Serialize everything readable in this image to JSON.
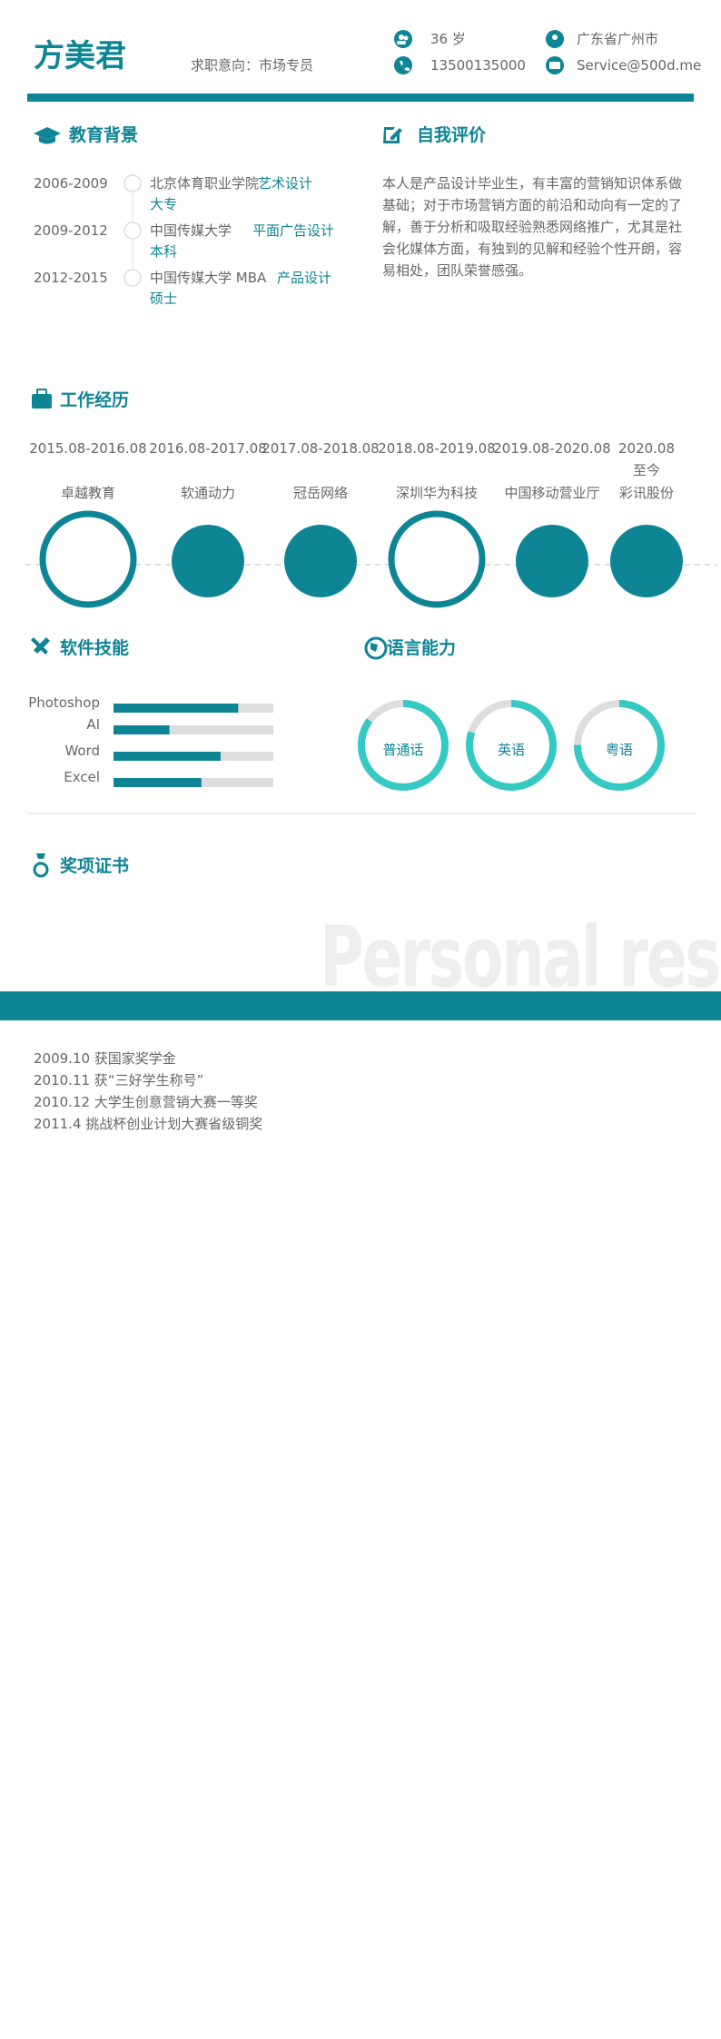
{
  "header": {
    "name": "方美君",
    "objective": "求职意向：市场专员",
    "age": "36 岁",
    "phone": "13500135000",
    "location": "广东省广州市",
    "email": "Service@500d.me"
  },
  "education": {
    "title": "教育背景",
    "items": [
      {
        "years": "2006-2009",
        "school": "北京体育职业学院",
        "major": "艺术设计",
        "degree": "大专"
      },
      {
        "years": "2009-2012",
        "school": "中国传媒大学",
        "major": "平面广告设计",
        "degree": "本科"
      },
      {
        "years": "2012-2015",
        "school": "中国传媒大学 MBA",
        "major": "产品设计",
        "degree": "硕士"
      }
    ]
  },
  "self_evaluation": {
    "title": "自我评价",
    "text": "本人是产品设计毕业生，有丰富的营销知识体系做基础；对于市场营销方面的前沿和动向有一定的了解，善于分析和吸取经验熟悉网络推广，尤其是社会化媒体方面，有独到的见解和经验个性开朗，容易相处，团队荣誉感强。"
  },
  "work": {
    "title": "工作经历",
    "items": [
      {
        "period": [
          "2015.08-2016.08"
        ],
        "company": "卓越教育",
        "ring": true
      },
      {
        "period": [
          "2016.08-2017.08"
        ],
        "company": "软通动力",
        "ring": false
      },
      {
        "period": [
          "2017.08-2018.08"
        ],
        "company": "冠岳网络",
        "ring": false
      },
      {
        "period": [
          "2018.08-2019.08"
        ],
        "company": "深圳华为科技",
        "ring": true
      },
      {
        "period": [
          "2019.08-2020.08"
        ],
        "company": "中国移动营业厅",
        "ring": false
      },
      {
        "period": [
          "2020.08",
          "至今"
        ],
        "company": "彩讯股份",
        "ring": false
      }
    ]
  },
  "skills": {
    "title": "软件技能",
    "items": [
      {
        "name": "Photoshop",
        "value": 78
      },
      {
        "name": "AI",
        "value": 35
      },
      {
        "name": "Word",
        "value": 67
      },
      {
        "name": "Excel",
        "value": 55
      }
    ]
  },
  "languages": {
    "title": "语言能力",
    "items": [
      {
        "name": "普通话",
        "value": 85
      },
      {
        "name": "英语",
        "value": 80
      },
      {
        "name": "粤语",
        "value": 75
      }
    ]
  },
  "awards": {
    "title": "奖项证书",
    "items": [
      "2009.10 获国家奖学金",
      "2010.11 获“三好学生称号”",
      "2010.12 大学生创意营销大赛一等奖",
      "2011.4 挑战杯创业计划大赛省级铜奖"
    ]
  },
  "watermark": "Personal resume"
}
